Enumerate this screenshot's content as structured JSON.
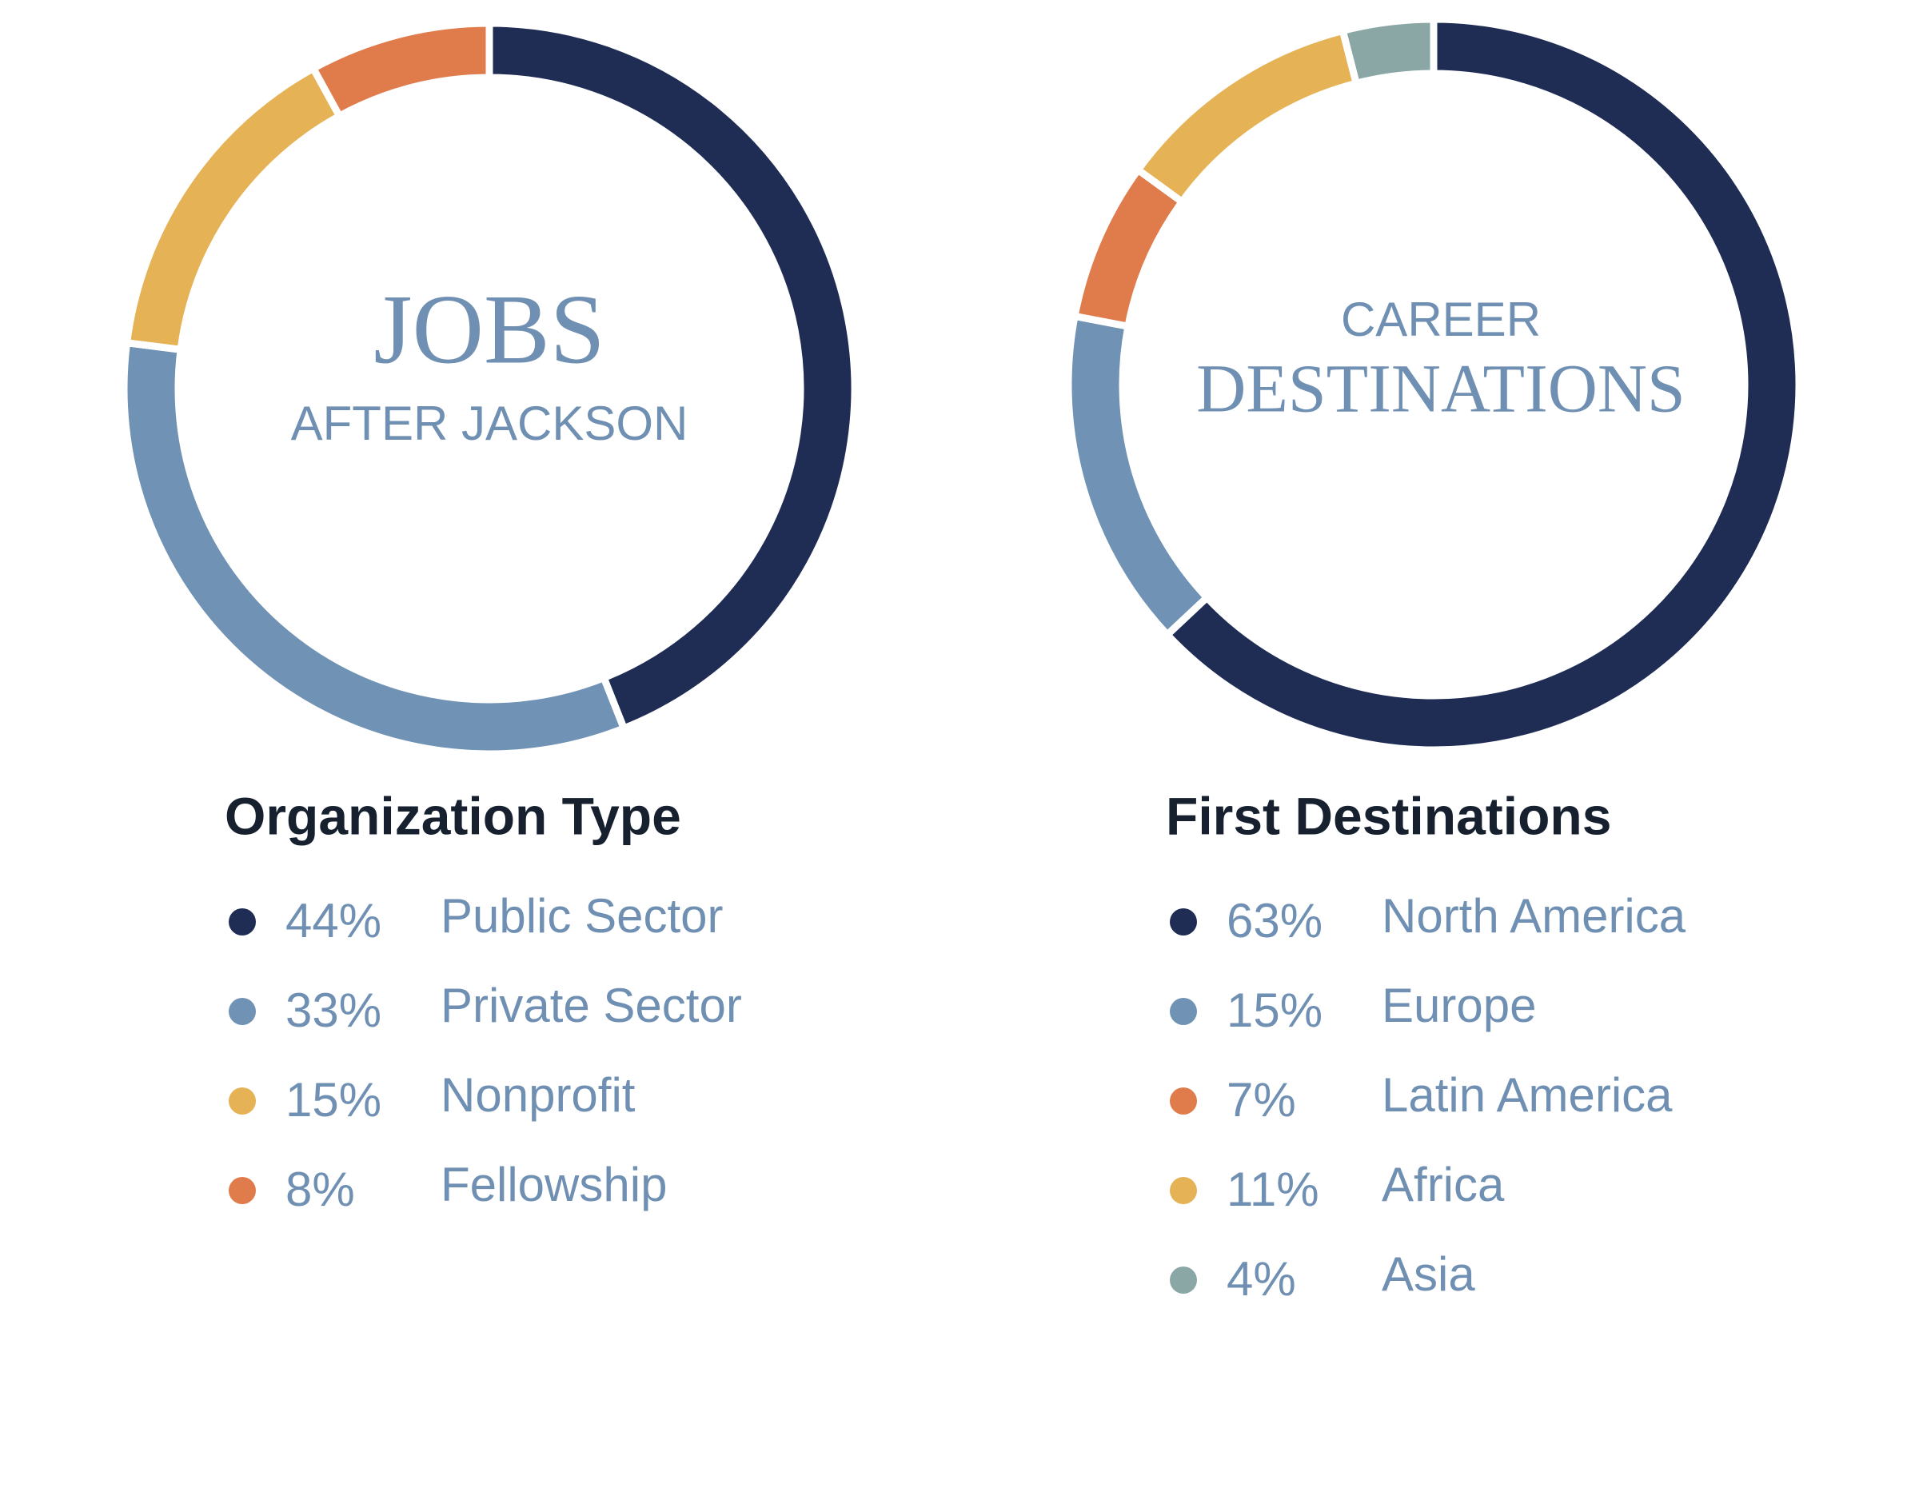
{
  "chart_data": [
    {
      "type": "donut",
      "title": "JOBS",
      "subtitle": "AFTER JACKSON",
      "legend_title": "Organization Type",
      "categories": [
        "Public Sector",
        "Private Sector",
        "Nonprofit",
        "Fellowship"
      ],
      "values": [
        44,
        33,
        15,
        8
      ],
      "value_labels": [
        "44%",
        "33%",
        "15%",
        "8%"
      ],
      "colors": [
        "#1f2d55",
        "#7092b4",
        "#e5b256",
        "#e07b4b"
      ]
    },
    {
      "type": "donut",
      "title": "DESTINATIONS",
      "subtitle": "CAREER",
      "legend_title": "First Destinations",
      "categories": [
        "North America",
        "Europe",
        "Latin America",
        "Africa",
        "Asia"
      ],
      "values": [
        63,
        15,
        7,
        11,
        4
      ],
      "value_labels": [
        "63%",
        "15%",
        "7%",
        "11%",
        "4%"
      ],
      "colors": [
        "#1f2d55",
        "#7092b4",
        "#e07b4b",
        "#e5b256",
        "#8aa7a5"
      ]
    }
  ]
}
